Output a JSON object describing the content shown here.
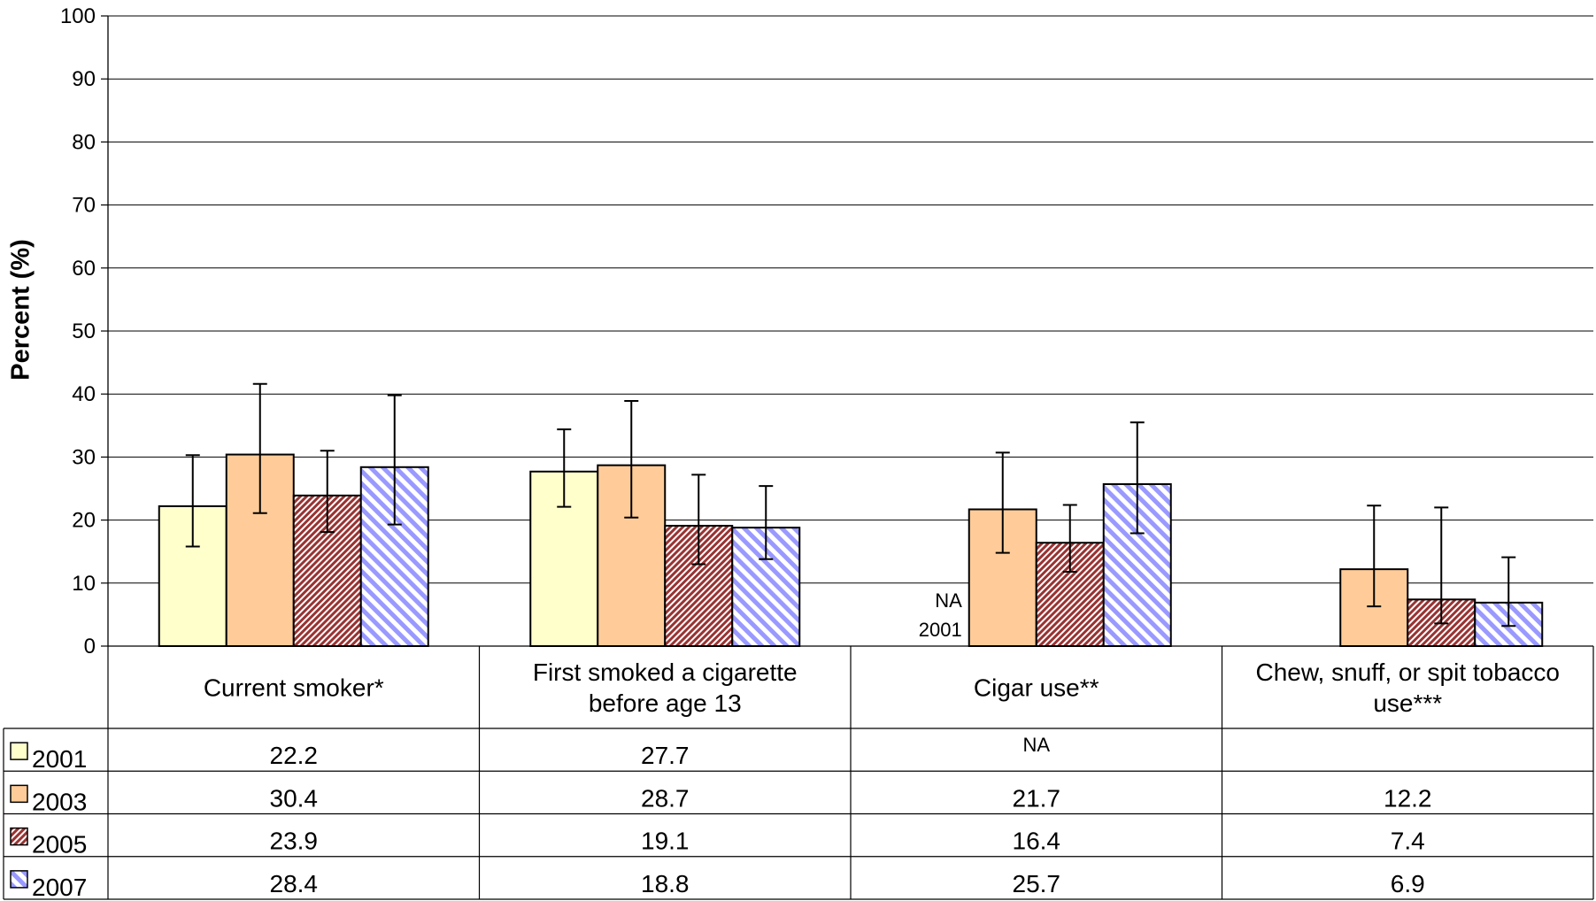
{
  "chart_data": {
    "type": "bar",
    "title": "",
    "ylabel": "Percent (%)",
    "xlabel": "",
    "ylim": [
      0,
      100
    ],
    "yticks": [
      0,
      10,
      20,
      30,
      40,
      50,
      60,
      70,
      80,
      90,
      100
    ],
    "grid": true,
    "categories": [
      [
        "Current smoker*"
      ],
      [
        "First smoked a cigarette",
        "before age 13"
      ],
      [
        "Cigar use**"
      ],
      [
        "Chew, snuff, or spit tobacco",
        "use***"
      ]
    ],
    "series": [
      {
        "name": "2001",
        "fill": "#ffffcc",
        "pattern": "solid",
        "values": [
          22.2,
          27.7,
          null,
          null
        ],
        "table_values": [
          "22.2",
          "27.7",
          "NA",
          ""
        ],
        "error_bars": [
          [
            15.8,
            30.3
          ],
          [
            22.1,
            34.4
          ],
          null,
          null
        ]
      },
      {
        "name": "2003",
        "fill": "#ffcc99",
        "pattern": "solid",
        "values": [
          30.4,
          28.7,
          21.7,
          12.2
        ],
        "table_values": [
          "30.4",
          "28.7",
          "21.7",
          "12.2"
        ],
        "error_bars": [
          [
            21.1,
            41.6
          ],
          [
            20.4,
            38.9
          ],
          [
            14.8,
            30.7
          ],
          [
            6.3,
            22.3
          ]
        ]
      },
      {
        "name": "2005",
        "fill": "#993333",
        "pattern": "dense-diagonal",
        "values": [
          23.9,
          19.1,
          16.4,
          7.4
        ],
        "table_values": [
          "23.9",
          "19.1",
          "16.4",
          "7.4"
        ],
        "error_bars": [
          [
            18.1,
            31.0
          ],
          [
            13.0,
            27.2
          ],
          [
            11.8,
            22.4
          ],
          [
            3.6,
            22.0
          ]
        ]
      },
      {
        "name": "2007",
        "fill": "#9999ff",
        "pattern": "wide-diagonal",
        "values": [
          28.4,
          18.8,
          25.7,
          6.9
        ],
        "table_values": [
          "28.4",
          "18.8",
          "25.7",
          "6.9"
        ],
        "error_bars": [
          [
            19.3,
            39.8
          ],
          [
            13.8,
            25.4
          ],
          [
            17.9,
            35.5
          ],
          [
            3.2,
            14.1
          ]
        ]
      }
    ],
    "annotations": [
      {
        "category_index": 2,
        "lines": [
          "NA",
          "2001"
        ]
      }
    ]
  }
}
